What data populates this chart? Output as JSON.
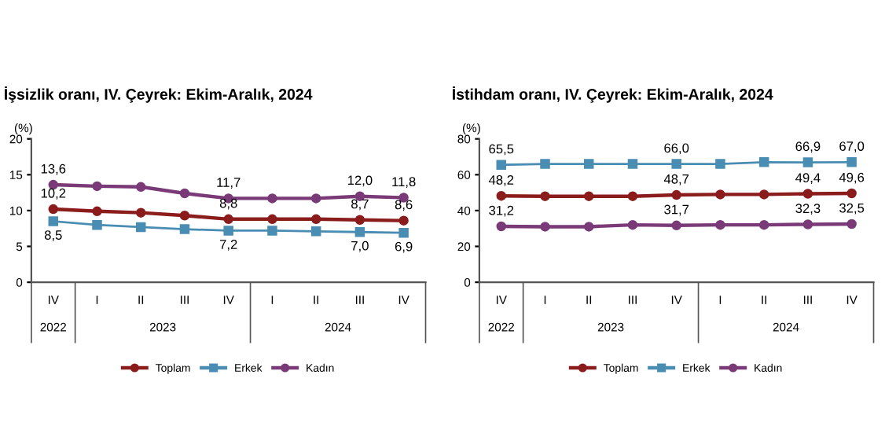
{
  "chart_data": [
    {
      "type": "line",
      "title": "İşsizlik oranı, IV. Çeyrek: Ekim-Aralık, 2024",
      "ylabel": "(%)",
      "categories": [
        "IV",
        "I",
        "II",
        "III",
        "IV",
        "I",
        "II",
        "III",
        "IV"
      ],
      "annotations": [
        "2022",
        "2023",
        "2024"
      ],
      "ylim": [
        0,
        20
      ],
      "yticks": [
        0,
        5,
        10,
        15,
        20
      ],
      "grid": false,
      "legend": "bottom",
      "series": [
        {
          "name": "Toplam",
          "color": "#8b1c1c",
          "marker": "circle",
          "values": [
            10.2,
            9.9,
            9.7,
            9.3,
            8.8,
            8.8,
            8.8,
            8.7,
            8.6
          ],
          "value_labels": [
            "10,2",
            null,
            null,
            null,
            "8,8",
            null,
            null,
            "8,7",
            "8,6"
          ]
        },
        {
          "name": "Erkek",
          "color": "#4a8db3",
          "marker": "square",
          "values": [
            8.5,
            8.0,
            7.7,
            7.4,
            7.2,
            7.2,
            7.1,
            7.0,
            6.9
          ],
          "value_labels": [
            "8,5",
            null,
            null,
            null,
            "7,2",
            null,
            null,
            "7,0",
            "6,9"
          ]
        },
        {
          "name": "Kadın",
          "color": "#7a3a78",
          "marker": "circle",
          "values": [
            13.6,
            13.4,
            13.3,
            12.4,
            11.7,
            11.7,
            11.7,
            12.0,
            11.8
          ],
          "value_labels": [
            "13,6",
            null,
            null,
            null,
            "11,7",
            null,
            null,
            "12,0",
            "11,8"
          ]
        }
      ]
    },
    {
      "type": "line",
      "title": "İstihdam oranı, IV. Çeyrek: Ekim-Aralık, 2024",
      "ylabel": "(%)",
      "categories": [
        "IV",
        "I",
        "II",
        "III",
        "IV",
        "I",
        "II",
        "III",
        "IV"
      ],
      "annotations": [
        "2022",
        "2023",
        "2024"
      ],
      "ylim": [
        0,
        80
      ],
      "yticks": [
        0,
        20,
        40,
        60,
        80
      ],
      "grid": false,
      "legend": "bottom",
      "series": [
        {
          "name": "Toplam",
          "color": "#8b1c1c",
          "marker": "circle",
          "values": [
            48.2,
            48,
            48,
            48,
            48.7,
            49,
            49,
            49.4,
            49.6
          ],
          "value_labels": [
            "48,2",
            null,
            null,
            null,
            "48,7",
            null,
            null,
            "49,4",
            "49,6"
          ]
        },
        {
          "name": "Erkek",
          "color": "#4a8db3",
          "marker": "square",
          "values": [
            65.5,
            66,
            66,
            66,
            66.0,
            66,
            67,
            66.9,
            67.0
          ],
          "value_labels": [
            "65,5",
            null,
            null,
            null,
            "66,0",
            null,
            null,
            "66,9",
            "67,0"
          ]
        },
        {
          "name": "Kadın",
          "color": "#7a3a78",
          "marker": "circle",
          "values": [
            31.2,
            31,
            31,
            32,
            31.7,
            32,
            32,
            32.3,
            32.5
          ],
          "value_labels": [
            "31,2",
            null,
            null,
            null,
            "31,7",
            null,
            null,
            "32,3",
            "32,5"
          ]
        }
      ]
    }
  ]
}
